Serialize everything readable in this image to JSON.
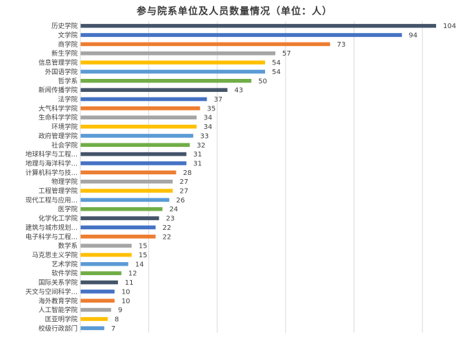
{
  "chart_data": {
    "type": "bar",
    "orientation": "horizontal",
    "title": "参与院系单位及人员数量情况（单位：人）",
    "xlabel": "",
    "ylabel": "",
    "xlim": [
      0,
      110
    ],
    "grid": "vertical",
    "legend": "none",
    "categories": [
      "历史学院",
      "文学院",
      "商学院",
      "新生学院",
      "信息管理学院",
      "外国语学院",
      "哲学系",
      "新闻传播学院",
      "法学院",
      "大气科学学院",
      "生命科学学院",
      "环境学院",
      "政府管理学院",
      "社会学院",
      "地球科学与工程…",
      "地理与海洋科学…",
      "计算机科学与技…",
      "物理学院",
      "工程管理学院",
      "现代工程与应用…",
      "医学院",
      "化学化工学院",
      "建筑与城市规划…",
      "电子科学与工程…",
      "数学系",
      "马克思主义学院",
      "艺术学院",
      "软件学院",
      "国际关系学院",
      "天文与空间科学…",
      "海外教育学院",
      "人工智能学院",
      "匡亚明学院",
      "校级行政部门"
    ],
    "values": [
      104,
      94,
      73,
      57,
      54,
      54,
      50,
      43,
      37,
      35,
      34,
      34,
      33,
      32,
      31,
      31,
      28,
      27,
      27,
      26,
      24,
      23,
      22,
      22,
      15,
      15,
      14,
      12,
      11,
      10,
      10,
      9,
      8,
      7
    ],
    "colors": [
      "#44546a",
      "#4472c4",
      "#ed7d31",
      "#a5a5a5",
      "#ffc000",
      "#5b9bd5",
      "#70ad47"
    ],
    "gridline_color": "#d9d9d9",
    "label_color": "#404040"
  }
}
